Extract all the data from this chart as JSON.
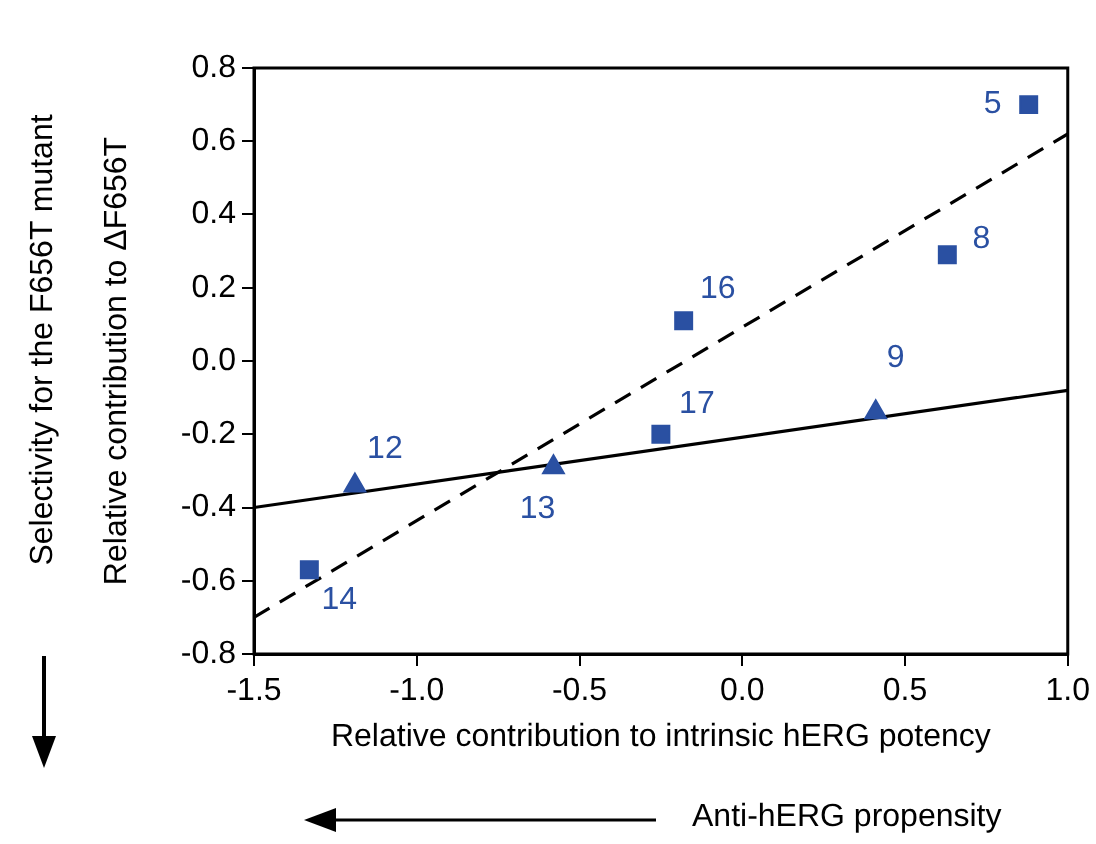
{
  "chart_data": {
    "type": "scatter",
    "xlabel": "Relative contribution to intrinsic hERG potency",
    "ylabel": "Relative contribution to ΔF656T",
    "xlim": [
      -1.5,
      1.0
    ],
    "xticks": [
      -1.5,
      {
        "value": -1,
        "label": "-1.0"
      },
      -0.5,
      {
        "value": 0,
        "label": "0.0"
      },
      0.5,
      {
        "value": 1,
        "label": "1.0"
      }
    ],
    "ylim": [
      -0.8,
      0.8
    ],
    "yticks": [
      -0.8,
      -0.6,
      -0.4,
      -0.2,
      {
        "value": 0,
        "label": "0.0"
      },
      0.2,
      0.4,
      0.6,
      0.8
    ],
    "grid": false,
    "legend": false,
    "series": [
      {
        "marker": "square",
        "color": "#2a50a2",
        "x": [
          0.88,
          0.63,
          -0.18,
          -0.25,
          -1.33
        ],
        "values": [
          0.7,
          0.29,
          0.11,
          -0.2,
          -0.57
        ]
      },
      {
        "marker": "triangle",
        "color": "#2a50a2",
        "x": [
          -1.19,
          -0.58,
          0.41
        ],
        "values": [
          -0.34,
          -0.29,
          -0.14
        ]
      },
      {
        "type": "line",
        "line_style": "dashed",
        "marker": "none",
        "color": "#000000",
        "x": [
          -1.5,
          1.0
        ],
        "values": [
          -0.7,
          0.62
        ]
      },
      {
        "type": "line",
        "line_style": "solid",
        "marker": "none",
        "color": "#000000",
        "x": [
          -1.5,
          1.0
        ],
        "values": [
          -0.4,
          -0.08
        ]
      }
    ],
    "annotations": [
      {
        "text": "5",
        "x": 0.88,
        "y": 0.7
      },
      {
        "text": "8",
        "x": 0.63,
        "y": 0.29
      },
      {
        "text": "16",
        "x": -0.18,
        "y": 0.11
      },
      {
        "text": "17",
        "x": -0.25,
        "y": -0.2
      },
      {
        "text": "14",
        "x": -1.33,
        "y": -0.57
      },
      {
        "text": "12",
        "x": -1.19,
        "y": -0.34
      },
      {
        "text": "13",
        "x": -0.58,
        "y": -0.29
      },
      {
        "text": "9",
        "x": 0.41,
        "y": -0.14
      },
      "Selectivity for the F656T mutant",
      "Anti-hERG propensity"
    ]
  }
}
